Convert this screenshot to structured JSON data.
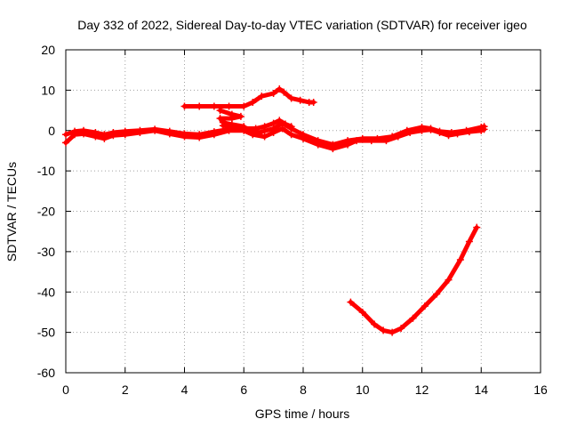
{
  "chart_data": {
    "type": "line",
    "title": "Day 332 of 2022, Sidereal Day-to-day VTEC variation (SDTVAR) for receiver igeo",
    "xlabel": "GPS time / hours",
    "ylabel": "SDTVAR / TECUs",
    "xlim": [
      0,
      16
    ],
    "ylim": [
      -60,
      20
    ],
    "xticks": [
      0,
      2,
      4,
      6,
      8,
      10,
      12,
      14,
      16
    ],
    "yticks": [
      -60,
      -50,
      -40,
      -30,
      -20,
      -10,
      0,
      10,
      20
    ],
    "xtick_labels": [
      "0",
      "2",
      "4",
      "6",
      "8",
      "10",
      "12",
      "14",
      "16"
    ],
    "ytick_labels": [
      "-60",
      "-50",
      "-40",
      "-30",
      "-20",
      "-10",
      "0",
      "10",
      "20"
    ],
    "grid": true,
    "series_color": "#ff0000",
    "series": [
      {
        "name": "main-band-a",
        "points": [
          [
            0,
            -3
          ],
          [
            0.3,
            -1
          ],
          [
            0.6,
            -0.8
          ],
          [
            1,
            -1.5
          ],
          [
            1.3,
            -2
          ],
          [
            1.6,
            -1.2
          ],
          [
            2,
            -1
          ],
          [
            2.5,
            -0.5
          ],
          [
            3,
            0
          ],
          [
            3.5,
            -0.8
          ],
          [
            4,
            -1.5
          ],
          [
            4.5,
            -1.7
          ],
          [
            5,
            -1
          ],
          [
            5.5,
            0
          ],
          [
            6,
            0
          ],
          [
            6.3,
            -1
          ],
          [
            6.7,
            -1.5
          ],
          [
            7,
            -0.5
          ],
          [
            7.3,
            0.5
          ],
          [
            7.6,
            -1
          ],
          [
            8,
            -2
          ],
          [
            8.5,
            -3.5
          ],
          [
            9,
            -4.5
          ],
          [
            9.5,
            -3.5
          ],
          [
            9.8,
            -2.5
          ],
          [
            10.3,
            -2.5
          ],
          [
            10.8,
            -2.5
          ],
          [
            11.2,
            -1.5
          ],
          [
            11.6,
            -0.5
          ],
          [
            12,
            0
          ],
          [
            12.3,
            0.2
          ],
          [
            12.6,
            -0.5
          ],
          [
            12.9,
            -1.2
          ],
          [
            13.2,
            -0.8
          ],
          [
            13.6,
            -0.3
          ],
          [
            14,
            0
          ],
          [
            14.1,
            0.3
          ]
        ]
      },
      {
        "name": "main-band-b",
        "points": [
          [
            0,
            -1
          ],
          [
            0.3,
            -0.2
          ],
          [
            0.6,
            0
          ],
          [
            1,
            -0.5
          ],
          [
            1.3,
            -1
          ],
          [
            1.6,
            -0.5
          ],
          [
            2,
            -0.2
          ],
          [
            2.5,
            0
          ],
          [
            3,
            0.3
          ],
          [
            3.5,
            -0.2
          ],
          [
            4,
            -0.8
          ],
          [
            4.5,
            -1
          ],
          [
            5,
            -0.3
          ],
          [
            5.5,
            0.3
          ],
          [
            6,
            0.5
          ],
          [
            6.5,
            -0.5
          ],
          [
            7,
            0.5
          ],
          [
            7.3,
            1.8
          ],
          [
            7.6,
            0.5
          ],
          [
            8,
            -1
          ],
          [
            8.5,
            -2.5
          ],
          [
            9,
            -3.5
          ],
          [
            9.5,
            -2.5
          ],
          [
            10,
            -2
          ],
          [
            10.5,
            -2
          ],
          [
            11,
            -1.5
          ],
          [
            11.5,
            0
          ],
          [
            12,
            0.8
          ],
          [
            12.3,
            0.5
          ],
          [
            12.6,
            -0.2
          ],
          [
            13,
            -0.5
          ],
          [
            13.5,
            0
          ],
          [
            14,
            0.8
          ],
          [
            14.1,
            1
          ]
        ]
      },
      {
        "name": "upper-arc",
        "points": [
          [
            4,
            6
          ],
          [
            4.5,
            6
          ],
          [
            5,
            6
          ],
          [
            5.5,
            6
          ],
          [
            6,
            6
          ],
          [
            6.3,
            7
          ],
          [
            6.6,
            8.5
          ],
          [
            7,
            9.2
          ],
          [
            7.2,
            10.3
          ],
          [
            7.35,
            9.5
          ],
          [
            7.6,
            8
          ],
          [
            7.9,
            7.5
          ],
          [
            8.2,
            7
          ],
          [
            8.35,
            7
          ]
        ]
      },
      {
        "name": "upper-loop",
        "points": [
          [
            5.2,
            5
          ],
          [
            5.6,
            4
          ],
          [
            5.9,
            3.5
          ],
          [
            5.6,
            3
          ],
          [
            5.2,
            3
          ],
          [
            5.3,
            2
          ],
          [
            5.6,
            1.5
          ],
          [
            6,
            1
          ]
        ]
      },
      {
        "name": "upper-drop",
        "points": [
          [
            5.3,
            1.2
          ],
          [
            5.7,
            1
          ],
          [
            6,
            0.5
          ],
          [
            6.4,
            0.5
          ],
          [
            6.7,
            1
          ],
          [
            7,
            1.8
          ],
          [
            7.2,
            2.5
          ],
          [
            7.4,
            1.6
          ],
          [
            7.6,
            1
          ]
        ]
      },
      {
        "name": "lower-arc",
        "points": [
          [
            9.6,
            -42.5
          ],
          [
            10,
            -45
          ],
          [
            10.4,
            -48
          ],
          [
            10.7,
            -49.5
          ],
          [
            11,
            -50
          ],
          [
            11.3,
            -49
          ],
          [
            11.7,
            -46.5
          ],
          [
            12.1,
            -43.5
          ],
          [
            12.5,
            -40.5
          ],
          [
            12.9,
            -37
          ],
          [
            13.3,
            -32
          ],
          [
            13.6,
            -27.5
          ],
          [
            13.85,
            -24
          ]
        ]
      }
    ]
  }
}
